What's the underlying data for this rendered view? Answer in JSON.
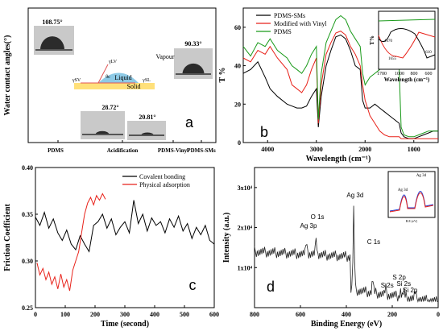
{
  "chart_data": [
    {
      "panel": "a",
      "type": "bar",
      "ylabel": "Water contact angles(°)",
      "categories": [
        "PDMS",
        "Acidification",
        "PDMS-Vinyl",
        "PDMS-SMs"
      ],
      "values": [
        108.75,
        28.72,
        20.81,
        90.33
      ],
      "value_labels": [
        "108.75°",
        "28.72°",
        "20.81°",
        "90.33°"
      ],
      "diagram_labels": {
        "vapour": "Vapour",
        "liquid": "Liquid",
        "solid": "Solid",
        "gamma_lv": "γLV",
        "gamma_sv": "γSV",
        "gamma_sl": "γSL",
        "theta": "θc"
      },
      "panel_label": "a"
    },
    {
      "panel": "b",
      "type": "line",
      "xlabel": "Wavelength (cm⁻¹)",
      "ylabel": "T %",
      "xlim": [
        4500,
        500
      ],
      "ylim": [
        0,
        70
      ],
      "xticks": [
        4000,
        3000,
        2000,
        1000
      ],
      "yticks": [
        0,
        20,
        40,
        60
      ],
      "series": [
        {
          "name": "PDMS-SMs",
          "color": "#000000",
          "x": [
            4500,
            4350,
            4200,
            4050,
            3950,
            3800,
            3600,
            3500,
            3400,
            3300,
            3200,
            3100,
            3000,
            2960,
            2900,
            2800,
            2700,
            2600,
            2500,
            2400,
            2300,
            2200,
            2100,
            2050,
            2000,
            1900,
            1800,
            1700,
            1600,
            1500,
            1400,
            1300,
            1260,
            1200,
            1100,
            1000,
            900,
            800,
            700,
            600,
            500
          ],
          "y": [
            36,
            38,
            42,
            34,
            28,
            24,
            20,
            19,
            18,
            18,
            19,
            24,
            28,
            8,
            24,
            40,
            48,
            55,
            56,
            54,
            48,
            40,
            38,
            22,
            18,
            18,
            20,
            18,
            16,
            14,
            12,
            10,
            5,
            3,
            2,
            2,
            3,
            4,
            5,
            6,
            6
          ]
        },
        {
          "name": "Modified with Vinyl",
          "color": "#e8221a",
          "x": [
            4500,
            4350,
            4200,
            4050,
            3950,
            3800,
            3600,
            3500,
            3400,
            3300,
            3200,
            3100,
            3000,
            2960,
            2900,
            2800,
            2700,
            2600,
            2500,
            2400,
            2300,
            2200,
            2100,
            2050,
            2000,
            1900,
            1800,
            1700,
            1600,
            1500,
            1400,
            1300,
            1260,
            1200,
            1100,
            1000,
            900,
            800,
            700,
            600,
            500
          ],
          "y": [
            44,
            42,
            48,
            46,
            50,
            44,
            38,
            30,
            28,
            26,
            30,
            38,
            44,
            10,
            30,
            46,
            52,
            57,
            58,
            56,
            50,
            46,
            40,
            30,
            22,
            14,
            10,
            6,
            4,
            3,
            3,
            3,
            2,
            2,
            2,
            2,
            2,
            2,
            2,
            2,
            2
          ]
        },
        {
          "name": "PDMS",
          "color": "#1a9a1a",
          "x": [
            4500,
            4350,
            4200,
            4050,
            3950,
            3800,
            3600,
            3500,
            3400,
            3300,
            3200,
            3100,
            3000,
            2960,
            2900,
            2800,
            2700,
            2600,
            2500,
            2400,
            2300,
            2200,
            2100,
            2050,
            2000,
            1900,
            1800,
            1700,
            1600,
            1500,
            1400,
            1300,
            1260,
            1200,
            1100,
            1000,
            900,
            800,
            700,
            600,
            500
          ],
          "y": [
            50,
            45,
            52,
            50,
            54,
            48,
            44,
            40,
            38,
            36,
            40,
            46,
            50,
            12,
            36,
            52,
            58,
            64,
            66,
            64,
            58,
            54,
            50,
            36,
            30,
            34,
            36,
            38,
            40,
            42,
            40,
            38,
            8,
            4,
            3,
            3,
            4,
            5,
            6,
            6,
            6
          ]
        }
      ],
      "inset": {
        "xlabel": "Wavelength (cm⁻¹)",
        "ylabel": "T%",
        "xticks": [
          1700,
          1000,
          800,
          600
        ],
        "annotations": [
          "1670",
          "1655",
          "610"
        ]
      },
      "panel_label": "b"
    },
    {
      "panel": "c",
      "type": "line",
      "xlabel": "Time (second)",
      "ylabel": "Friction Coefficient",
      "xlim": [
        0,
        600
      ],
      "ylim": [
        0.25,
        0.4
      ],
      "xticks": [
        0,
        100,
        200,
        300,
        400,
        500,
        600
      ],
      "yticks": [
        0.25,
        0.3,
        0.35,
        0.4
      ],
      "yticklabels": [
        "0.25",
        "0.30",
        "0.35",
        "0.40"
      ],
      "series": [
        {
          "name": "Covalent bonding",
          "color": "#000000",
          "x": [
            0,
            15,
            30,
            45,
            60,
            75,
            90,
            105,
            120,
            135,
            150,
            165,
            180,
            195,
            210,
            225,
            240,
            255,
            270,
            285,
            300,
            315,
            330,
            345,
            360,
            375,
            390,
            405,
            420,
            435,
            450,
            465,
            480,
            495,
            510,
            525,
            540,
            555,
            570,
            585,
            600
          ],
          "y": [
            0.347,
            0.338,
            0.352,
            0.335,
            0.345,
            0.33,
            0.322,
            0.333,
            0.318,
            0.312,
            0.327,
            0.318,
            0.31,
            0.338,
            0.342,
            0.35,
            0.335,
            0.345,
            0.328,
            0.336,
            0.342,
            0.33,
            0.365,
            0.34,
            0.35,
            0.332,
            0.346,
            0.338,
            0.342,
            0.33,
            0.345,
            0.336,
            0.348,
            0.332,
            0.34,
            0.324,
            0.336,
            0.328,
            0.338,
            0.322,
            0.318
          ]
        },
        {
          "name": "Physical adsorption",
          "color": "#e8221a",
          "x": [
            5,
            15,
            25,
            35,
            45,
            55,
            65,
            75,
            85,
            95,
            105,
            115,
            125,
            135,
            145,
            155,
            165,
            175,
            185,
            195,
            205,
            215,
            225,
            235
          ],
          "y": [
            0.298,
            0.285,
            0.292,
            0.28,
            0.288,
            0.275,
            0.283,
            0.27,
            0.286,
            0.272,
            0.28,
            0.268,
            0.29,
            0.3,
            0.31,
            0.33,
            0.35,
            0.362,
            0.368,
            0.36,
            0.37,
            0.365,
            0.372,
            0.366
          ]
        }
      ],
      "panel_label": "c"
    },
    {
      "panel": "d",
      "type": "line",
      "xlabel": "Binding Energy (eV)",
      "ylabel": "Intensity (a.u.)",
      "xlim": [
        800,
        0
      ],
      "ylim": [
        0,
        35000
      ],
      "xticks": [
        800,
        600,
        400,
        200,
        0
      ],
      "yticklabels": [
        "1x10⁴",
        "2x10⁴",
        "3x10⁴"
      ],
      "yticks": [
        10000,
        20000,
        30000
      ],
      "peaks": [
        {
          "label": "O 1s",
          "x": 531
        },
        {
          "label": "Ag 3p",
          "x": 573
        },
        {
          "label": "Ag 3d",
          "x": 368
        },
        {
          "label": "C 1s",
          "x": 285
        },
        {
          "label": "S 2s",
          "x": 228
        },
        {
          "label": "S 2p",
          "x": 164
        },
        {
          "label": "Si 2s",
          "x": 150
        },
        {
          "label": "Si 2p",
          "x": 100
        }
      ],
      "inset": {
        "labels": [
          "Ag 3d",
          "Ag 3d"
        ],
        "xlabel": "B.E.(eV)"
      },
      "panel_label": "d"
    }
  ]
}
